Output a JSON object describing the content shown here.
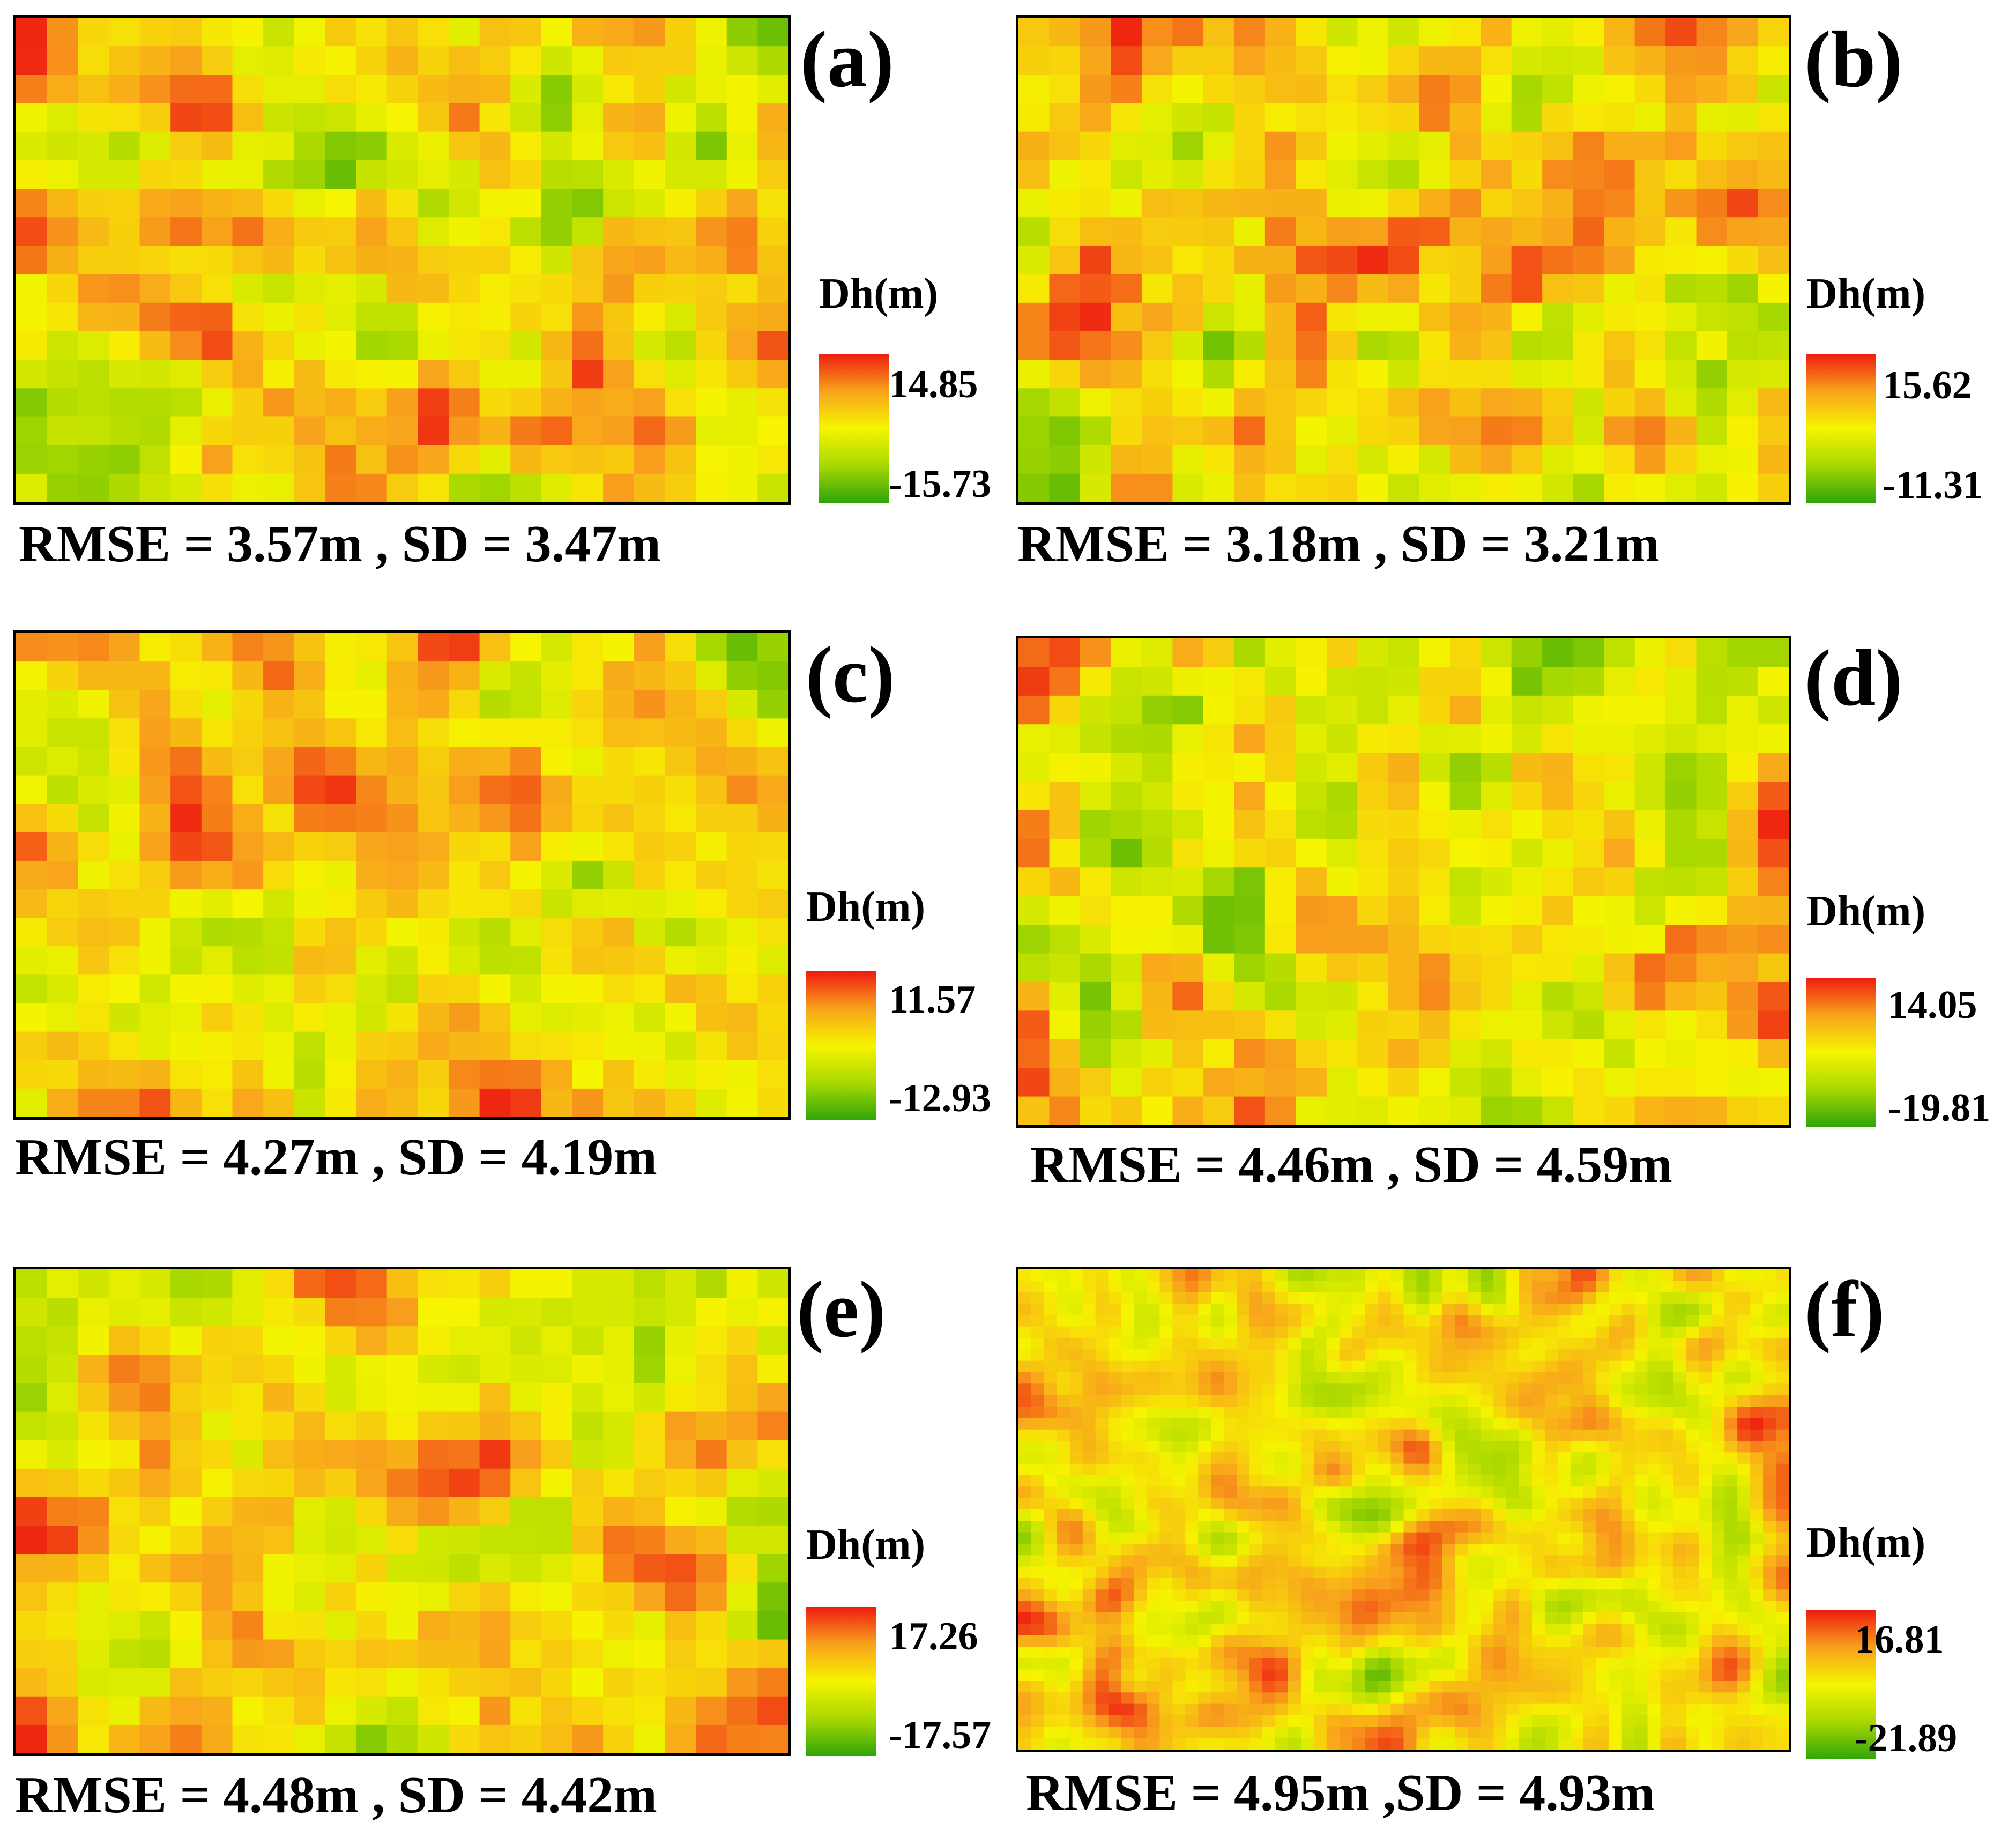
{
  "colormap": {
    "low_color": "#2fa50a",
    "mid_low_color": "#a8d800",
    "mid_color": "#f6f400",
    "mid_high_color": "#f8a21c",
    "high_color": "#ee1c10"
  },
  "legend_title": "Dh(m)",
  "chart_data": [
    {
      "type": "heatmap",
      "panel": "(a)",
      "colorbar_label": "Dh(m)",
      "colorbar_max": "14.85",
      "colorbar_min": "-15.73",
      "value_range": [
        -15.73,
        14.85
      ],
      "grid": [
        17,
        25
      ],
      "stats_text": "RMSE = 3.57m , SD = 3.47m",
      "rmse": 3.57,
      "sd": 3.47,
      "texture": "coarse"
    },
    {
      "type": "heatmap",
      "panel": "(b)",
      "colorbar_label": "Dh(m)",
      "colorbar_max": "15.62",
      "colorbar_min": "-11.31",
      "value_range": [
        -11.31,
        15.62
      ],
      "grid": [
        17,
        25
      ],
      "stats_text": "RMSE = 3.18m , SD = 3.21m",
      "rmse": 3.18,
      "sd": 3.21,
      "texture": "coarse"
    },
    {
      "type": "heatmap",
      "panel": "(c)",
      "colorbar_label": "Dh(m)",
      "colorbar_max": "11.57",
      "colorbar_min": "-12.93",
      "value_range": [
        -12.93,
        11.57
      ],
      "grid": [
        17,
        25
      ],
      "stats_text": "RMSE = 4.27m , SD = 4.19m",
      "rmse": 4.27,
      "sd": 4.19,
      "texture": "coarse"
    },
    {
      "type": "heatmap",
      "panel": "(d)",
      "colorbar_label": "Dh(m)",
      "colorbar_max": "14.05",
      "colorbar_min": "-19.81",
      "value_range": [
        -19.81,
        14.05
      ],
      "grid": [
        17,
        25
      ],
      "stats_text": "RMSE = 4.46m , SD = 4.59m",
      "rmse": 4.46,
      "sd": 4.59,
      "texture": "coarse"
    },
    {
      "type": "heatmap",
      "panel": "(e)",
      "colorbar_label": "Dh(m)",
      "colorbar_max": "17.26",
      "colorbar_min": "-17.57",
      "value_range": [
        -17.57,
        17.26
      ],
      "grid": [
        17,
        25
      ],
      "stats_text": "RMSE = 4.48m , SD = 4.42m",
      "rmse": 4.48,
      "sd": 4.42,
      "texture": "coarse"
    },
    {
      "type": "heatmap",
      "panel": "(f)",
      "colorbar_label": "Dh(m)",
      "colorbar_max": "16.81",
      "colorbar_min": "-21.89",
      "value_range": [
        -21.89,
        16.81
      ],
      "grid": [
        42,
        60
      ],
      "stats_text": "RMSE = 4.95m ,SD = 4.93m",
      "rmse": 4.95,
      "sd": 4.93,
      "texture": "fine"
    }
  ]
}
